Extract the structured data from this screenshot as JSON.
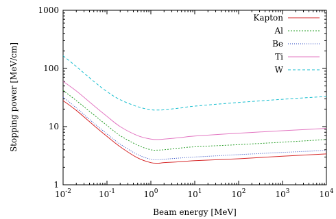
{
  "chart_data": {
    "type": "line",
    "title": "",
    "xlabel": "Beam energy [MeV]",
    "ylabel": "Stopping power [MeV/cm]",
    "x_scale": "log",
    "y_scale": "log",
    "xlim": [
      0.01,
      10000
    ],
    "ylim": [
      1,
      1000
    ],
    "grid": false,
    "legend_position": "top-right",
    "x_ticks": [
      {
        "value": 0.01,
        "base": "10",
        "exp": "-2"
      },
      {
        "value": 0.1,
        "base": "10",
        "exp": "-1"
      },
      {
        "value": 1,
        "base": "10",
        "exp": "0"
      },
      {
        "value": 10,
        "base": "10",
        "exp": "1"
      },
      {
        "value": 100,
        "base": "10",
        "exp": "2"
      },
      {
        "value": 1000,
        "base": "10",
        "exp": "3"
      },
      {
        "value": 10000,
        "base": "10",
        "exp": "4"
      }
    ],
    "y_ticks": [
      {
        "value": 1,
        "label": "1"
      },
      {
        "value": 10,
        "label": "10"
      },
      {
        "value": 100,
        "label": "100"
      },
      {
        "value": 1000,
        "label": "1000"
      }
    ],
    "series": [
      {
        "name": "Kapton",
        "color": "#d62728",
        "dash": "",
        "x": [
          0.01,
          0.02,
          0.05,
          0.1,
          0.2,
          0.5,
          1,
          1.5,
          2,
          5,
          10,
          100,
          1000,
          10000
        ],
        "y": [
          28,
          19,
          10.5,
          6.8,
          4.5,
          2.9,
          2.4,
          2.35,
          2.4,
          2.5,
          2.6,
          2.8,
          3.1,
          3.4
        ]
      },
      {
        "name": "Al",
        "color": "#2ca02c",
        "dash": "2,2",
        "x": [
          0.01,
          0.02,
          0.05,
          0.1,
          0.2,
          0.5,
          1,
          1.5,
          2,
          5,
          10,
          100,
          1000,
          10000
        ],
        "y": [
          42,
          28,
          16,
          10.5,
          7,
          4.8,
          4.0,
          3.95,
          4.0,
          4.3,
          4.5,
          4.9,
          5.4,
          6.0
        ]
      },
      {
        "name": "Be",
        "color": "#1f3fbf",
        "dash": "1,2",
        "x": [
          0.01,
          0.02,
          0.05,
          0.1,
          0.2,
          0.5,
          1,
          1.5,
          2,
          5,
          10,
          100,
          1000,
          10000
        ],
        "y": [
          32,
          21,
          11.5,
          7.5,
          5,
          3.3,
          2.75,
          2.7,
          2.75,
          2.9,
          3.0,
          3.3,
          3.6,
          3.9
        ]
      },
      {
        "name": "Ti",
        "color": "#e377c2",
        "dash": "",
        "x": [
          0.01,
          0.02,
          0.05,
          0.1,
          0.2,
          0.5,
          1,
          1.5,
          2,
          5,
          10,
          100,
          1000,
          10000
        ],
        "y": [
          60,
          41,
          23,
          15,
          10,
          7,
          6.1,
          6.0,
          6.1,
          6.5,
          6.9,
          7.7,
          8.5,
          9.3
        ]
      },
      {
        "name": "W",
        "color": "#17becf",
        "dash": "4,3",
        "x": [
          0.01,
          0.02,
          0.05,
          0.1,
          0.2,
          0.5,
          1,
          1.5,
          2,
          5,
          10,
          100,
          1000,
          10000
        ],
        "y": [
          165,
          108,
          60,
          40,
          29,
          22,
          19.5,
          19.3,
          19.5,
          21,
          22.5,
          26,
          29.5,
          33
        ]
      }
    ]
  }
}
